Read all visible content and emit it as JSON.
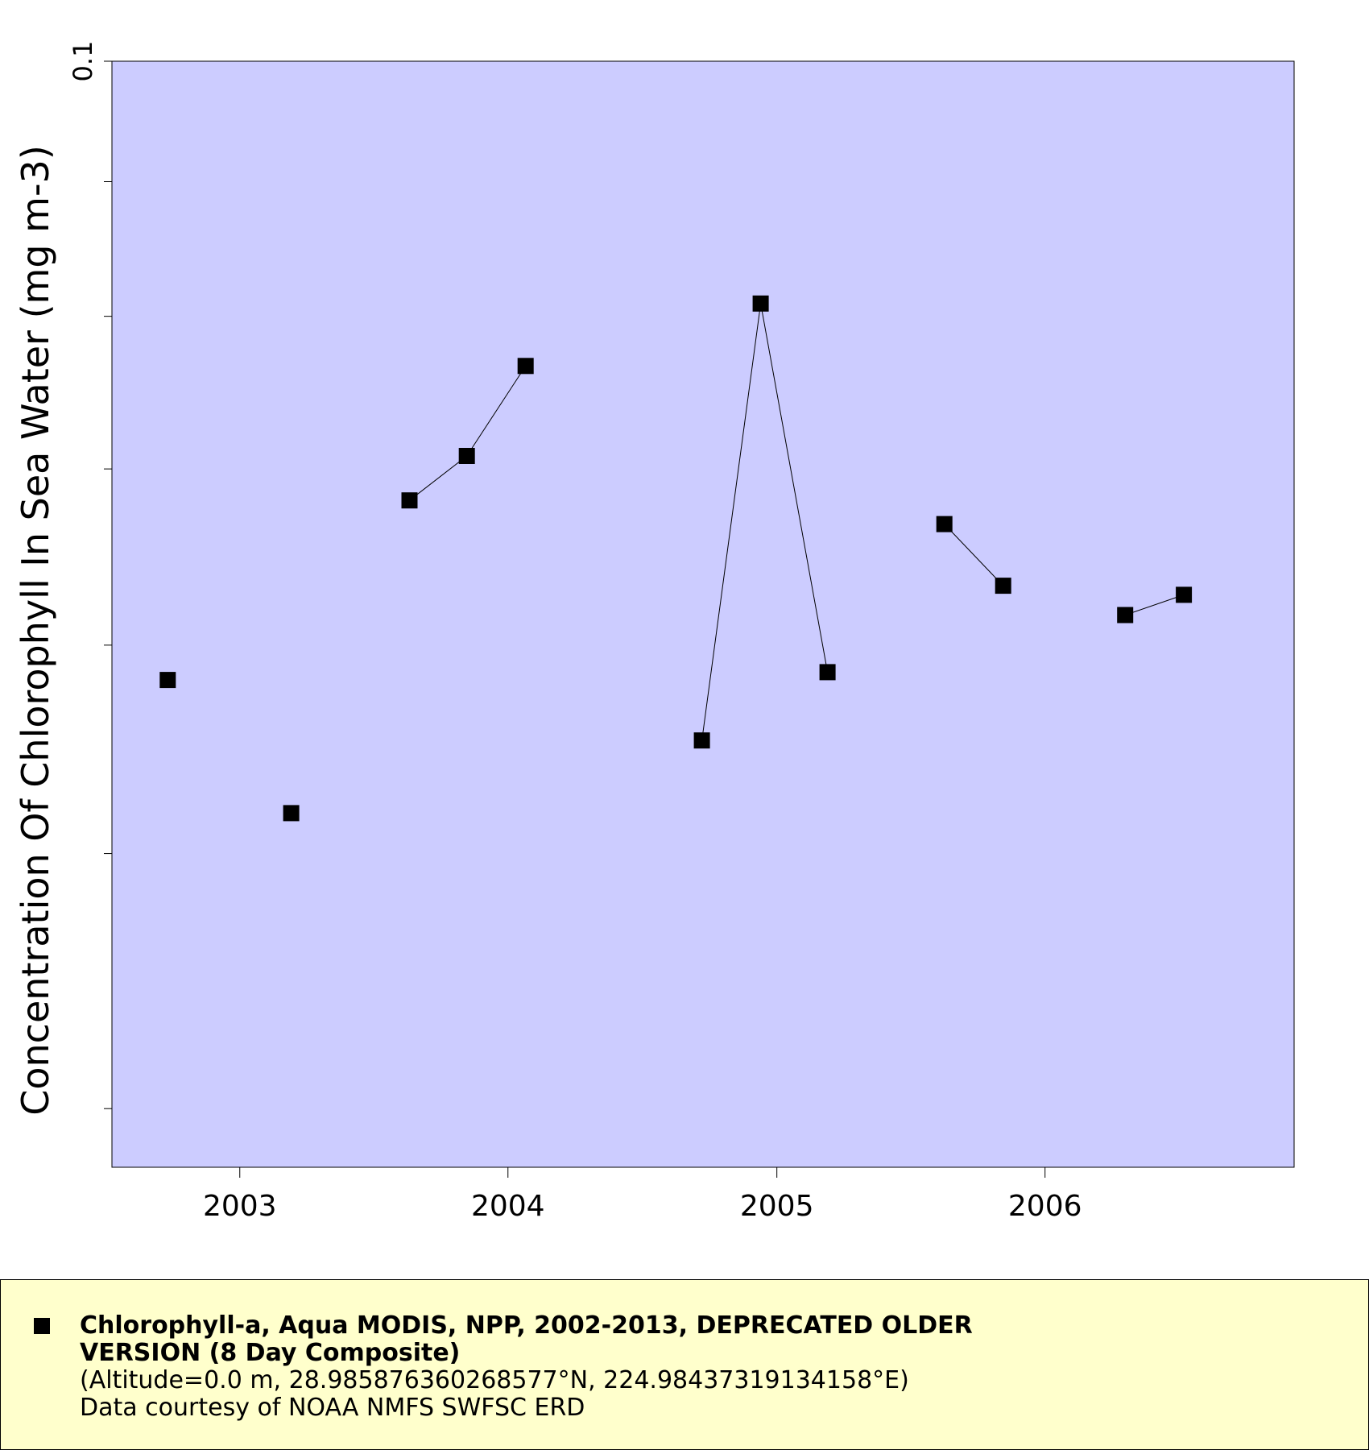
{
  "chart_data": {
    "type": "line",
    "title": "",
    "xlabel": "",
    "ylabel": "Concentration Of Chlorophyll In Sea Water (mg m-3)",
    "y_scale": "log",
    "ylim": [
      0.038,
      0.1
    ],
    "y_tick_labels": [
      "0.1"
    ],
    "y_ticks": [
      0.1,
      0.09,
      0.08,
      0.07,
      0.06,
      0.05,
      0.04
    ],
    "xlim": [
      "2002-07-11",
      "2006-12-06"
    ],
    "x_ticks": [
      "2003-01-01",
      "2004-01-01",
      "2005-01-01",
      "2006-01-01"
    ],
    "x_tick_labels": [
      "2003",
      "2004",
      "2005",
      "2006"
    ],
    "grid": false,
    "series": [
      {
        "name": "Chlorophyll-a, Aqua MODIS, NPP, 2002-2013, DEPRECATED OLDER VERSION (8 Day Composite)",
        "marker": "filled-square",
        "color": "#000000",
        "segments": [
          [
            {
              "x": "2002-09-25",
              "y": 0.0582
            }
          ],
          [
            {
              "x": "2003-03-12",
              "y": 0.0518
            }
          ],
          [
            {
              "x": "2003-08-20",
              "y": 0.0681
            },
            {
              "x": "2003-11-06",
              "y": 0.0708
            },
            {
              "x": "2004-01-25",
              "y": 0.0766
            }
          ],
          [
            {
              "x": "2004-09-21",
              "y": 0.0552
            },
            {
              "x": "2004-12-10",
              "y": 0.0809
            },
            {
              "x": "2005-03-11",
              "y": 0.0586
            }
          ],
          [
            {
              "x": "2005-08-17",
              "y": 0.0667
            },
            {
              "x": "2005-11-05",
              "y": 0.0632
            }
          ],
          [
            {
              "x": "2006-04-20",
              "y": 0.0616
            },
            {
              "x": "2006-07-09",
              "y": 0.0627
            }
          ]
        ]
      }
    ]
  },
  "plot_style": {
    "background": "#ffffff",
    "plot_area_color": "#ccccff",
    "legend_background": "#ffffcc",
    "marker_color": "#000000"
  },
  "legend": {
    "line1": "Chlorophyll-a, Aqua MODIS, NPP, 2002-2013, DEPRECATED OLDER",
    "line2": "VERSION (8 Day Composite)",
    "line3": "(Altitude=0.0 m, 28.985876360268577°N, 224.98437319134158°E)",
    "line4": "Data courtesy of NOAA NMFS SWFSC ERD"
  }
}
